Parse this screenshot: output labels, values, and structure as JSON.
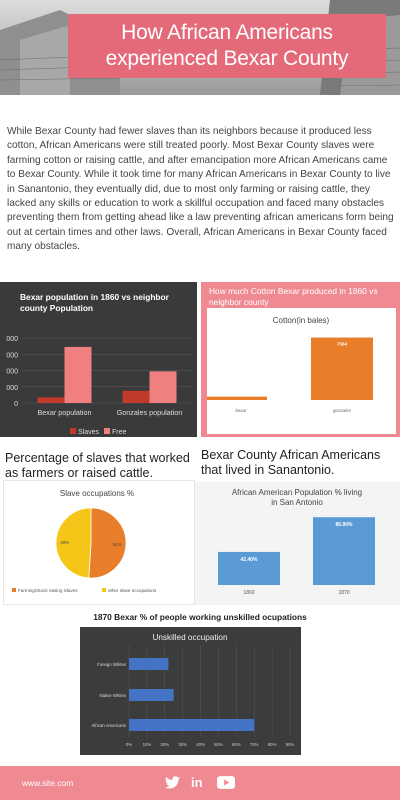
{
  "header": {
    "title": "How African Americans\nexperienced Bexar County"
  },
  "intro": {
    "text": "While Bexar County had fewer slaves than its neighbors because it produced less cotton, African Americans were still treated poorly. Most Bexar County slaves were farming cotton or raising cattle, and after emancipation more African Americans came to Bexar County. While it took time for many African Americans in Bexar County to live in Sanantonio, they eventually did, due to most only farming or raising cattle, they lacked any skills or education to work a skillful occupation and faced many obstacles preventing them from getting ahead like a law preventing african americans form being out at certain times and other laws. Overall, African Americans in Bexar County faced many obstacles."
  },
  "section_titles": {
    "population": "Bexar population in 1860 vs neighbor county Population",
    "cotton": "How much Cotton Bexar produced in 1860 vs neighbor county",
    "occupations": "Percentage of slaves that worked as farmers or raised cattle.",
    "sanantonio": "Bexar County African Americans that lived in Sanantonio.",
    "unskilled": "1870 Bexar % of people working unskilled ocupations"
  },
  "colors": {
    "pink": "#ef8a93",
    "title_pink": "#e46a7a",
    "slaves_red": "#c0392b",
    "free_pink": "#f08080",
    "orange": "#e87d2a",
    "yellow": "#f5c518",
    "blue": "#5b9bd5",
    "hbar_blue": "#4472c4"
  },
  "chart_data": [
    {
      "type": "bar",
      "title": "",
      "categories": [
        "Bexar population",
        "Gonzales population"
      ],
      "series": [
        {
          "name": "Slaves",
          "values": [
            350,
            750
          ],
          "color": "#c0392b"
        },
        {
          "name": "Free",
          "values": [
            3450,
            1950
          ],
          "color": "#f08080"
        }
      ],
      "ylim": [
        0,
        4000
      ],
      "yticks": [
        "0",
        "000",
        "000",
        "000",
        "000"
      ],
      "legend": "bottom",
      "grid": true
    },
    {
      "type": "bar",
      "title": "Cotton(in bales)",
      "categories": [
        "bexar",
        "gonzales"
      ],
      "values": [
        407,
        7584
      ],
      "labels": [
        "407",
        "7584"
      ],
      "ylim": [
        0,
        8500
      ],
      "color": "#e87d2a"
    },
    {
      "type": "pie",
      "title": "Slave occupations %",
      "categories": [
        "Farming/Stock raising Slaves",
        "other slave occupations"
      ],
      "values": [
        51,
        49
      ],
      "labels": [
        "51%",
        "49%"
      ],
      "colors": [
        "#e87d2a",
        "#f5c518"
      ],
      "legend": "bottom"
    },
    {
      "type": "bar",
      "title": "African American Population % living in San Antonio",
      "categories": [
        "1860",
        "1870"
      ],
      "values": [
        42.4,
        86.9
      ],
      "labels": [
        "42.40%",
        "86.90%"
      ],
      "ylim": [
        0,
        100
      ],
      "color": "#5b9bd5"
    },
    {
      "type": "bar",
      "orientation": "horizontal",
      "title": "Unskilled occupation",
      "categories": [
        "Foreign Whites",
        "Native Whites",
        "African Americans"
      ],
      "values": [
        22,
        25,
        70
      ],
      "xlim": [
        0,
        90
      ],
      "xticks": [
        "0%",
        "10%",
        "20%",
        "30%",
        "40%",
        "50%",
        "60%",
        "70%",
        "80%",
        "90%"
      ],
      "color": "#4472c4",
      "grid": true
    }
  ],
  "footer": {
    "url": "www.site.com",
    "icons": [
      "twitter-icon",
      "linkedin-icon",
      "youtube-icon"
    ],
    "linkedin_text": "in"
  }
}
